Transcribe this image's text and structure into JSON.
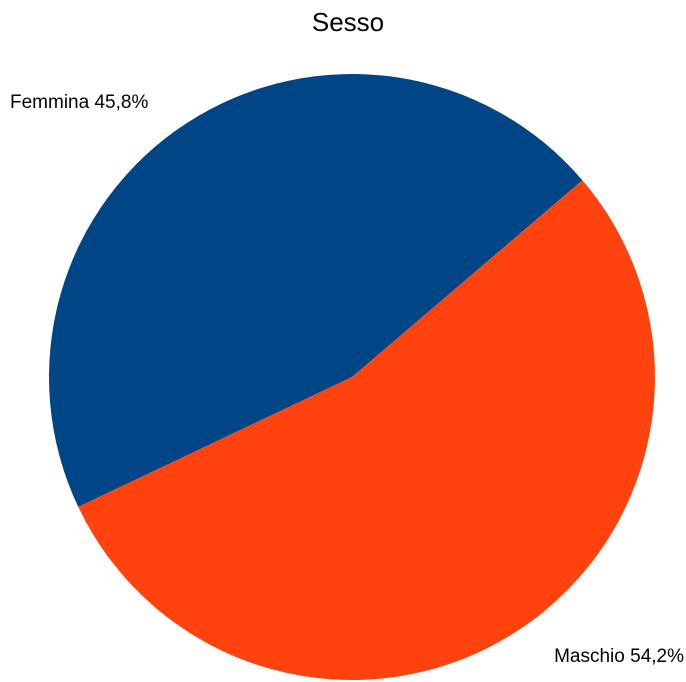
{
  "chart_data": {
    "type": "pie",
    "title": "Sesso",
    "categories": [
      "Femmina",
      "Maschio"
    ],
    "values": [
      45.8,
      54.2
    ],
    "labels": [
      "Femmina 45,8%",
      "Maschio 54,2%"
    ],
    "colors": [
      "#004586",
      "#ff420e"
    ],
    "legend": "none"
  }
}
